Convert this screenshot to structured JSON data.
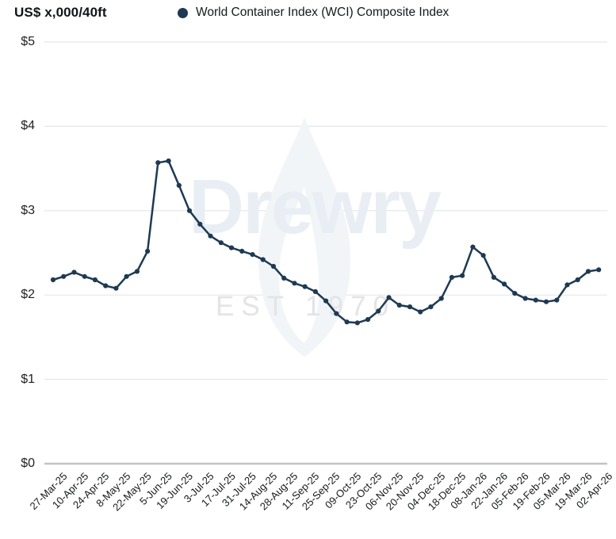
{
  "header": {
    "units_label": "US$ x,000/40ft",
    "legend": {
      "label": "World Container Index (WCI) Composite Index",
      "dot_color": "#1e3a52"
    }
  },
  "watermark": {
    "name": "Drewry",
    "est": "EST 1970"
  },
  "chart_data": {
    "type": "line",
    "title": "World Container Index (WCI) Composite Index",
    "ylabel": "US$ x,000/40ft",
    "units": "US$ thousands per 40ft container",
    "ylim": [
      0,
      5
    ],
    "y_tick_labels": [
      "$0",
      "$1",
      "$2",
      "$3",
      "$4",
      "$5"
    ],
    "grid": "horizontal",
    "legend_position": "top",
    "line_color": "#1e3a52",
    "marker": "circle",
    "x": [
      "27-Mar-25",
      "03-Apr-25",
      "10-Apr-25",
      "17-Apr-25",
      "24-Apr-25",
      "01-May-25",
      "08-May-25",
      "15-May-25",
      "22-May-25",
      "29-May-25",
      "05-Jun-25",
      "12-Jun-25",
      "19-Jun-25",
      "26-Jun-25",
      "03-Jul-25",
      "10-Jul-25",
      "17-Jul-25",
      "24-Jul-25",
      "31-Jul-25",
      "07-Aug-25",
      "14-Aug-25",
      "21-Aug-25",
      "28-Aug-25",
      "04-Sep-25",
      "11-Sep-25",
      "18-Sep-25",
      "25-Sep-25",
      "02-Oct-25",
      "09-Oct-25",
      "16-Oct-25",
      "23-Oct-25",
      "30-Oct-25",
      "06-Nov-25",
      "13-Nov-25",
      "20-Nov-25",
      "27-Nov-25",
      "04-Dec-25",
      "11-Dec-25",
      "18-Dec-25",
      "25-Dec-25",
      "08-Jan-26",
      "15-Jan-26",
      "22-Jan-26",
      "29-Jan-26",
      "05-Feb-26",
      "12-Feb-26",
      "19-Feb-26",
      "26-Feb-26",
      "05-Mar-26",
      "12-Mar-26",
      "19-Mar-26",
      "26-Mar-26",
      "02-Apr-26"
    ],
    "values": [
      2.18,
      2.22,
      2.27,
      2.22,
      2.18,
      2.11,
      2.08,
      2.22,
      2.28,
      2.52,
      3.57,
      3.59,
      3.3,
      3.0,
      2.84,
      2.7,
      2.62,
      2.56,
      2.52,
      2.48,
      2.42,
      2.34,
      2.2,
      2.14,
      2.1,
      2.04,
      1.93,
      1.78,
      1.68,
      1.67,
      1.71,
      1.81,
      1.97,
      1.88,
      1.86,
      1.8,
      1.86,
      1.96,
      2.21,
      2.23,
      2.57,
      2.47,
      2.21,
      2.13,
      2.02,
      1.96,
      1.94,
      1.92,
      1.94,
      2.12,
      2.18,
      2.28,
      2.3
    ],
    "x_tick_labels": [
      "27-Mar-25",
      "10-Apr-25",
      "24-Apr-25",
      "8-May-25",
      "22-May-25",
      "5-Jun-25",
      "19-Jun-25",
      "3-Jul-25",
      "17-Jul-25",
      "31-Jul-25",
      "14-Aug-25",
      "28-Aug-25",
      "11-Sep-25",
      "25-Sep-25",
      "09-Oct-25",
      "23-Oct-25",
      "06-Nov-25",
      "20-Nov-25",
      "04-Dec-25",
      "18-Dec-25",
      "08-Jan-26",
      "22-Jan-26",
      "05-Feb-26",
      "19-Feb-26",
      "05-Mar-26",
      "19-Mar-26",
      "02-Apr-26"
    ],
    "x_tick_every_n_points": 2
  }
}
